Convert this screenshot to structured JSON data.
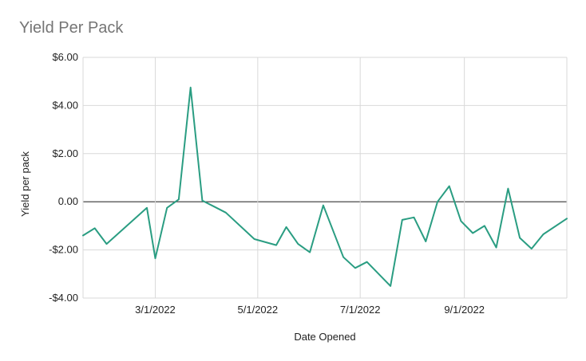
{
  "chart_data": {
    "type": "line",
    "title": "Yield Per Pack",
    "xlabel": "Date Opened",
    "ylabel": "Yield per pack",
    "ylim": [
      -4,
      6
    ],
    "xlim": [
      "2022-01-17",
      "2022-11-01"
    ],
    "yticks": [
      {
        "value": 6,
        "label": "$6.00"
      },
      {
        "value": 4,
        "label": "$4.00"
      },
      {
        "value": 2,
        "label": "$2.00"
      },
      {
        "value": 0,
        "label": "0.00"
      },
      {
        "value": -2,
        "label": "-$2.00"
      },
      {
        "value": -4,
        "label": "-$4.00"
      }
    ],
    "xticks": [
      {
        "date": "2022-03-01",
        "label": "3/1/2022"
      },
      {
        "date": "2022-05-01",
        "label": "5/1/2022"
      },
      {
        "date": "2022-07-01",
        "label": "7/1/2022"
      },
      {
        "date": "2022-09-01",
        "label": "9/1/2022"
      }
    ],
    "grid": true,
    "colors": {
      "line": "#2a9d82",
      "grid": "#d9d9d9",
      "zero_line": "#333333"
    },
    "series": [
      {
        "points": [
          {
            "x": "2022-01-17",
            "y": -1.4
          },
          {
            "x": "2022-01-24",
            "y": -1.1
          },
          {
            "x": "2022-01-31",
            "y": -1.75
          },
          {
            "x": "2022-02-24",
            "y": -0.25
          },
          {
            "x": "2022-03-01",
            "y": -2.35
          },
          {
            "x": "2022-03-08",
            "y": -0.25
          },
          {
            "x": "2022-03-15",
            "y": 0.1
          },
          {
            "x": "2022-03-22",
            "y": 4.75
          },
          {
            "x": "2022-03-29",
            "y": 0.05
          },
          {
            "x": "2022-04-05",
            "y": -0.2
          },
          {
            "x": "2022-04-12",
            "y": -0.45
          },
          {
            "x": "2022-04-29",
            "y": -1.55
          },
          {
            "x": "2022-05-12",
            "y": -1.8
          },
          {
            "x": "2022-05-18",
            "y": -1.05
          },
          {
            "x": "2022-05-25",
            "y": -1.75
          },
          {
            "x": "2022-06-01",
            "y": -2.1
          },
          {
            "x": "2022-06-09",
            "y": -0.15
          },
          {
            "x": "2022-06-21",
            "y": -2.3
          },
          {
            "x": "2022-06-28",
            "y": -2.75
          },
          {
            "x": "2022-07-05",
            "y": -2.5
          },
          {
            "x": "2022-07-19",
            "y": -3.5
          },
          {
            "x": "2022-07-26",
            "y": -0.75
          },
          {
            "x": "2022-08-02",
            "y": -0.65
          },
          {
            "x": "2022-08-09",
            "y": -1.65
          },
          {
            "x": "2022-08-16",
            "y": 0.0
          },
          {
            "x": "2022-08-23",
            "y": 0.65
          },
          {
            "x": "2022-08-30",
            "y": -0.8
          },
          {
            "x": "2022-09-06",
            "y": -1.3
          },
          {
            "x": "2022-09-13",
            "y": -1.0
          },
          {
            "x": "2022-09-20",
            "y": -1.9
          },
          {
            "x": "2022-09-27",
            "y": 0.55
          },
          {
            "x": "2022-10-04",
            "y": -1.5
          },
          {
            "x": "2022-10-11",
            "y": -1.95
          },
          {
            "x": "2022-10-18",
            "y": -1.35
          },
          {
            "x": "2022-11-01",
            "y": -0.7
          }
        ]
      }
    ]
  }
}
